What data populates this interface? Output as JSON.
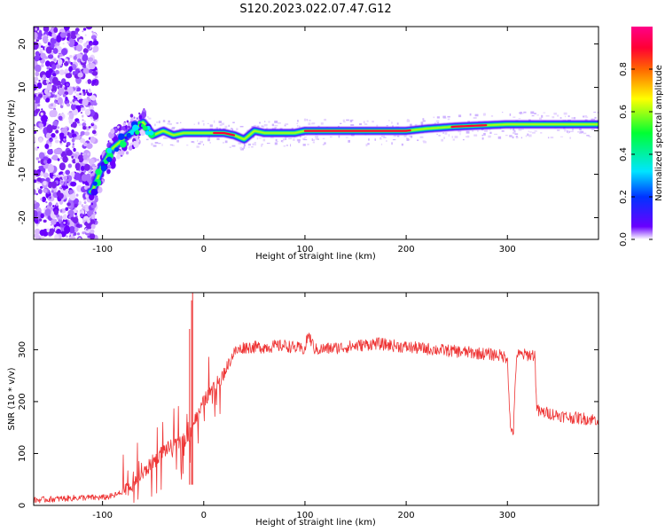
{
  "title": "S120.2023.022.07.47.G12",
  "chart_data": [
    {
      "type": "heatmap",
      "xlabel": "Height of straight line (km)",
      "ylabel": "Frequency (Hz)",
      "xlim": [
        -168,
        390
      ],
      "ylim": [
        -25,
        24
      ],
      "x_ticks": [
        -100,
        0,
        100,
        200,
        300
      ],
      "y_ticks": [
        -20,
        -10,
        0,
        10,
        20
      ],
      "colorbar": {
        "label": "Normalized spectral amplitude",
        "range": [
          0.0,
          1.0
        ],
        "ticks": [
          0.0,
          0.2,
          0.4,
          0.6,
          0.8
        ],
        "colors": [
          "#ffffff",
          "#6a00ff",
          "#0033ff",
          "#00e5ff",
          "#00ff33",
          "#ffff00",
          "#ff6600",
          "#ff0033",
          "#ff0088"
        ]
      },
      "ridge_x": [
        -110,
        -100,
        -90,
        -80,
        -70,
        -60,
        -50,
        -40,
        -30,
        -20,
        -10,
        0,
        10,
        20,
        30,
        40,
        50,
        60,
        70,
        80,
        90,
        100,
        120,
        150,
        200,
        220,
        250,
        300,
        350,
        390
      ],
      "ridge_y": [
        -14,
        -8,
        -4,
        -2,
        0,
        2,
        -1,
        0,
        -1,
        -0.5,
        -0.5,
        -0.5,
        -0.5,
        -0.5,
        -1,
        -2,
        0,
        -0.5,
        -0.5,
        -0.5,
        -0.5,
        0,
        0,
        0,
        0,
        0.5,
        1,
        1.5,
        1.5,
        1.5
      ]
    },
    {
      "type": "line",
      "xlabel": "Height of straight line (km)",
      "ylabel": "SNR (10 * v/v)",
      "xlim": [
        -168,
        390
      ],
      "ylim": [
        0,
        410
      ],
      "x_ticks": [
        -100,
        0,
        100,
        200,
        300
      ],
      "y_ticks": [
        0,
        100,
        200,
        300
      ],
      "color": "#ee3333",
      "x": [
        -168,
        -150,
        -120,
        -100,
        -90,
        -80,
        -70,
        -60,
        -50,
        -40,
        -30,
        -20,
        -15,
        -10,
        -5,
        0,
        5,
        10,
        15,
        20,
        25,
        30,
        40,
        60,
        80,
        100,
        103,
        110,
        140,
        170,
        200,
        230,
        260,
        290,
        300,
        301,
        303,
        306,
        309,
        311,
        320,
        327,
        329,
        331,
        340,
        360,
        390
      ],
      "y": [
        10,
        12,
        15,
        15,
        18,
        25,
        40,
        60,
        85,
        105,
        115,
        125,
        130,
        160,
        175,
        200,
        215,
        225,
        240,
        255,
        275,
        295,
        305,
        305,
        308,
        300,
        330,
        300,
        305,
        312,
        305,
        300,
        295,
        290,
        285,
        240,
        145,
        145,
        290,
        290,
        290,
        290,
        190,
        180,
        178,
        170,
        165
      ],
      "spikes": [
        [
          -11,
          410
        ],
        [
          -14,
          340
        ],
        [
          -12,
          395
        ]
      ]
    }
  ]
}
